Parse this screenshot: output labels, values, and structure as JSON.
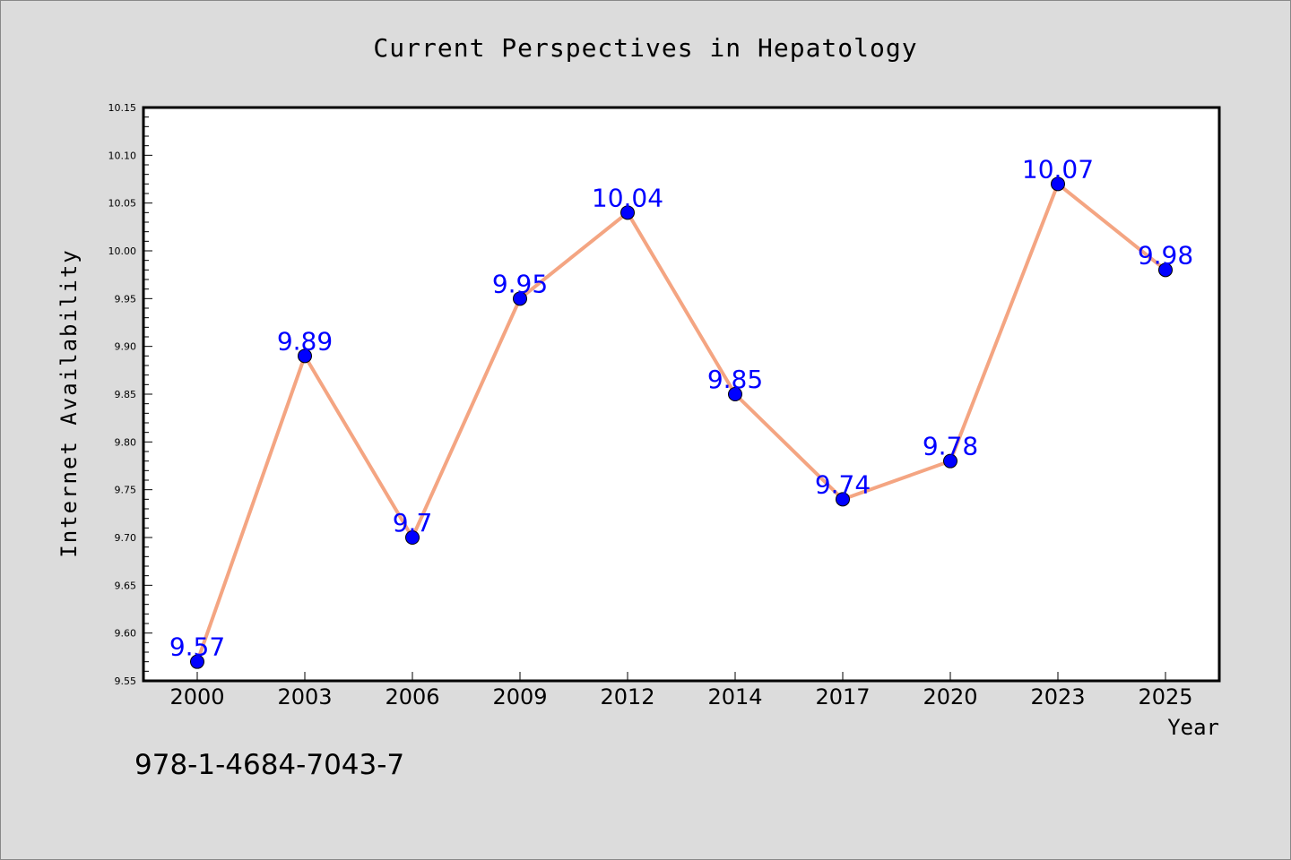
{
  "chart_data": {
    "type": "line",
    "title": "Current Perspectives in Hepatology",
    "xlabel": "Year",
    "ylabel": "Internet Availability",
    "categories": [
      "2000",
      "2003",
      "2006",
      "2009",
      "2012",
      "2014",
      "2017",
      "2020",
      "2023",
      "2025"
    ],
    "series": [
      {
        "values": [
          9.57,
          9.89,
          9.7,
          9.95,
          10.04,
          9.85,
          9.74,
          9.78,
          10.07,
          9.98
        ],
        "labels": [
          "9.57",
          "9.89",
          "9.7",
          "9.95",
          "10.04",
          "9.85",
          "9.74",
          "9.78",
          "10.07",
          "9.98"
        ],
        "line_color": "#F4A582",
        "marker_color": "#0000FF",
        "label_color": "#0000FF"
      }
    ],
    "ylim": [
      9.55,
      10.15
    ],
    "y_ticks": [
      "9.55",
      "9.60",
      "9.65",
      "9.70",
      "9.75",
      "9.80",
      "9.85",
      "9.90",
      "9.95",
      "10.00",
      "10.05",
      "10.10",
      "10.15"
    ],
    "grid": false,
    "annotation": "978-1-4684-7043-7",
    "background_color": "#DCDCDC",
    "plot_background_color": "#FFFFFF"
  }
}
